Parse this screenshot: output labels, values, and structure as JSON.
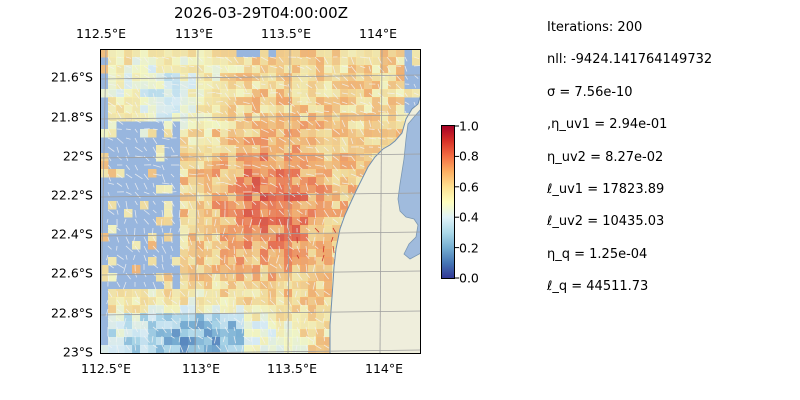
{
  "map": {
    "title": "2026-03-29T04:00:00Z",
    "top_ticks": [
      "112.5°E",
      "113°E",
      "113.5°E",
      "114°E"
    ],
    "bottom_ticks": [
      "112.5°E",
      "113°E",
      "113.5°E",
      "114°E"
    ],
    "left_ticks": [
      "21.6°S",
      "21.8°S",
      "22°S",
      "22.2°S",
      "22.4°S",
      "22.6°S",
      "22.8°S",
      "23°S"
    ],
    "colors": {
      "ocean_fill": "#98b6de",
      "land_fill": "#efeedc",
      "coast_outline": "#6f8fb0",
      "gridline": "#9e9e9e",
      "arrow_main": "#f2f2f2",
      "arrow_strong": "#c81f1f"
    },
    "colormap": "RdYlBu_r"
  },
  "colorbar": {
    "labels": [
      "1.0",
      "0.8",
      "0.6",
      "0.4",
      "0.2",
      "0.0"
    ],
    "range": [
      0.0,
      1.0
    ]
  },
  "stats": {
    "lines": [
      "Iterations: 200",
      "nll: -9424.141764149732",
      "σ = 7.56e-10",
      ",η_uv1 = 2.94e-01",
      "η_uv2 = 8.27e-02",
      "ℓ_uv1 = 17823.89",
      "ℓ_uv2 = 10435.03",
      "η_q = 1.25e-04",
      "ℓ_q = 44511.73"
    ]
  }
}
